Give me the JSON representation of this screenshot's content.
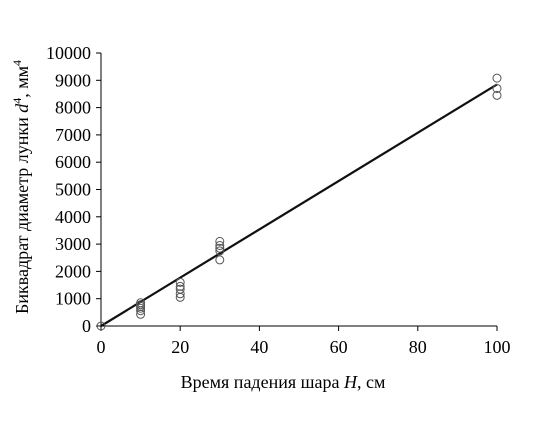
{
  "chart_data": {
    "type": "scatter",
    "xlabel": "Время падения шара ",
    "xlabel_var": "H",
    "xlabel_unit": ", см",
    "ylabel": "Биквадрат диаметр лунки ",
    "ylabel_var": "d",
    "ylabel_sup": "4",
    "ylabel_unit": ", мм",
    "ylabel_unit_sup": "4",
    "xlim": [
      0,
      100
    ],
    "ylim": [
      0,
      10000
    ],
    "xticks": [
      0,
      20,
      40,
      60,
      80,
      100
    ],
    "yticks": [
      0,
      1000,
      2000,
      3000,
      4000,
      5000,
      6000,
      7000,
      8000,
      9000,
      10000
    ],
    "grid": false,
    "points": [
      {
        "x": 0,
        "y": 0
      },
      {
        "x": 10,
        "y": 850
      },
      {
        "x": 10,
        "y": 780
      },
      {
        "x": 10,
        "y": 720
      },
      {
        "x": 10,
        "y": 650
      },
      {
        "x": 10,
        "y": 560
      },
      {
        "x": 10,
        "y": 430
      },
      {
        "x": 20,
        "y": 1600
      },
      {
        "x": 20,
        "y": 1450
      },
      {
        "x": 20,
        "y": 1350
      },
      {
        "x": 20,
        "y": 1180
      },
      {
        "x": 20,
        "y": 1050
      },
      {
        "x": 30,
        "y": 3100
      },
      {
        "x": 30,
        "y": 2950
      },
      {
        "x": 30,
        "y": 2850
      },
      {
        "x": 30,
        "y": 2750
      },
      {
        "x": 30,
        "y": 2420
      },
      {
        "x": 100,
        "y": 9080
      },
      {
        "x": 100,
        "y": 8700
      },
      {
        "x": 100,
        "y": 8450
      }
    ],
    "trendline": {
      "x": [
        0,
        100
      ],
      "y": [
        0,
        8850
      ]
    },
    "colors": {
      "marker": "#555555",
      "line": "#111111",
      "axis": "#000000"
    }
  }
}
